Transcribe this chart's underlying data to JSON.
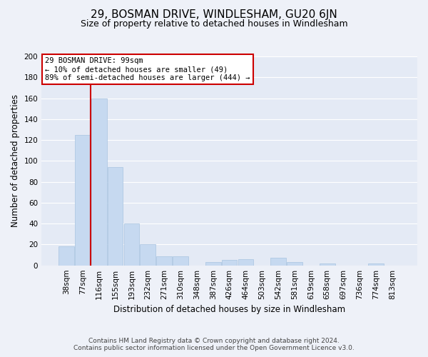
{
  "title": "29, BOSMAN DRIVE, WINDLESHAM, GU20 6JN",
  "subtitle": "Size of property relative to detached houses in Windlesham",
  "xlabel": "Distribution of detached houses by size in Windlesham",
  "ylabel": "Number of detached properties",
  "bar_labels": [
    "38sqm",
    "77sqm",
    "116sqm",
    "155sqm",
    "193sqm",
    "232sqm",
    "271sqm",
    "310sqm",
    "348sqm",
    "387sqm",
    "426sqm",
    "464sqm",
    "503sqm",
    "542sqm",
    "581sqm",
    "619sqm",
    "658sqm",
    "697sqm",
    "736sqm",
    "774sqm",
    "813sqm"
  ],
  "bar_values": [
    18,
    125,
    160,
    94,
    40,
    20,
    9,
    9,
    0,
    3,
    5,
    6,
    0,
    7,
    3,
    0,
    2,
    0,
    0,
    2,
    0
  ],
  "bar_color": "#c6d9f0",
  "bar_edge_color": "#a8c4e0",
  "ylim": [
    0,
    200
  ],
  "yticks": [
    0,
    20,
    40,
    60,
    80,
    100,
    120,
    140,
    160,
    180,
    200
  ],
  "marker_label": "29 BOSMAN DRIVE: 99sqm",
  "annotation_line1": "← 10% of detached houses are smaller (49)",
  "annotation_line2": "89% of semi-detached houses are larger (444) →",
  "annotation_box_color": "#ffffff",
  "annotation_box_edge": "#cc0000",
  "marker_line_color": "#cc0000",
  "footer1": "Contains HM Land Registry data © Crown copyright and database right 2024.",
  "footer2": "Contains public sector information licensed under the Open Government Licence v3.0.",
  "background_color": "#eef1f8",
  "plot_bg_color": "#e4eaf5",
  "grid_color": "#ffffff",
  "title_fontsize": 11,
  "subtitle_fontsize": 9,
  "axis_label_fontsize": 8.5,
  "tick_fontsize": 7.5,
  "footer_fontsize": 6.5,
  "annotation_fontsize": 7.5
}
